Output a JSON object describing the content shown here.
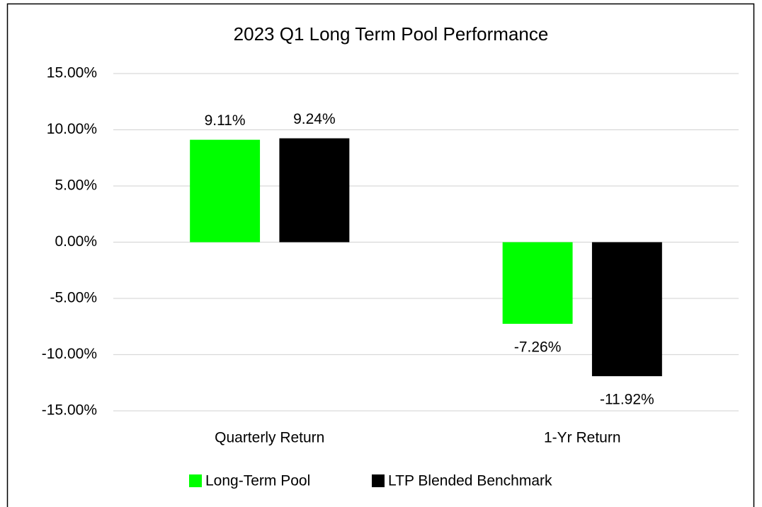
{
  "chart_data": {
    "type": "bar",
    "title": "2023 Q1 Long Term Pool Performance",
    "categories": [
      "Quarterly Return",
      "1-Yr Return"
    ],
    "series": [
      {
        "name": "Long-Term Pool",
        "color": "#00FF00",
        "values": [
          9.11,
          -7.26
        ],
        "value_labels": [
          "9.11%",
          "-7.26%"
        ]
      },
      {
        "name": "LTP Blended Benchmark",
        "color": "#000000",
        "values": [
          9.24,
          -11.92
        ],
        "value_labels": [
          "9.24%",
          "-11.92%"
        ]
      }
    ],
    "ylim": [
      -15,
      15
    ],
    "yticks": [
      {
        "value": -15,
        "label": "-15.00%"
      },
      {
        "value": -10,
        "label": "-10.00%"
      },
      {
        "value": -5,
        "label": "-5.00%"
      },
      {
        "value": 0,
        "label": "0.00%"
      },
      {
        "value": 5,
        "label": "5.00%"
      },
      {
        "value": 10,
        "label": "10.00%"
      },
      {
        "value": 15,
        "label": "15.00%"
      }
    ],
    "grid": true,
    "legend": "bottom"
  }
}
